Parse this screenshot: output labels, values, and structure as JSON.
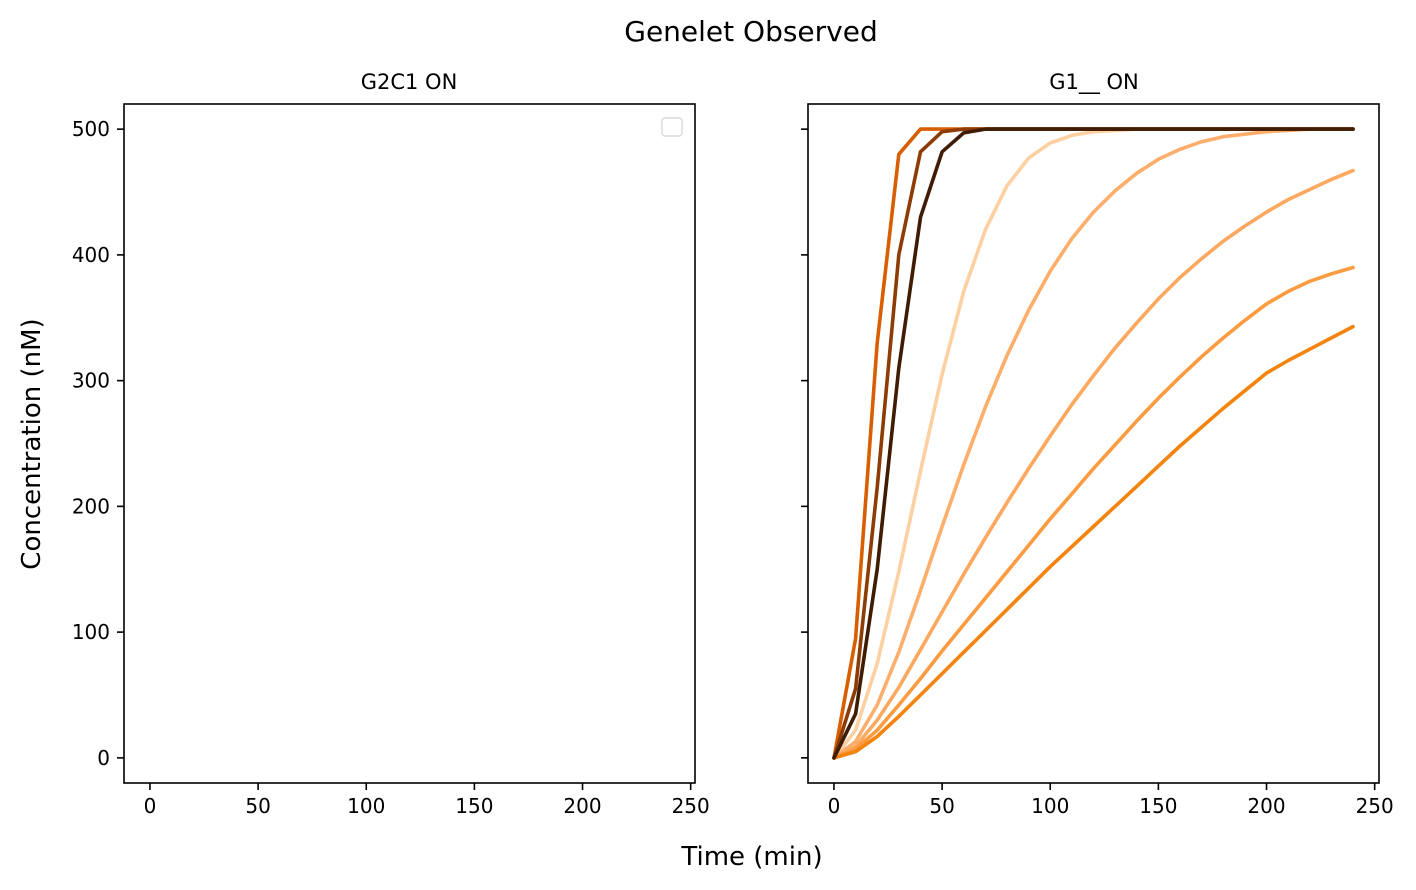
{
  "figure": {
    "title": "Genelet Observed",
    "xlabel": "Time (min)",
    "ylabel": "Concentration (nM)"
  },
  "chart_data": [
    {
      "type": "line",
      "title": "G2C1 ON",
      "xlim": [
        -12,
        252
      ],
      "ylim": [
        -20,
        520
      ],
      "xticks": [
        0,
        50,
        100,
        150,
        200,
        250
      ],
      "yticks": [
        0,
        100,
        200,
        300,
        400,
        500
      ],
      "xtick_labels": [
        "0",
        "50",
        "100",
        "150",
        "200",
        "250"
      ],
      "ytick_labels": [
        "0",
        "100",
        "200",
        "300",
        "400",
        "500"
      ],
      "show_yticklabels": true,
      "legend": {
        "location": "upper right",
        "entries": []
      },
      "grid": false,
      "series": []
    },
    {
      "type": "line",
      "title": "G1__ ON",
      "xlim": [
        -12,
        252
      ],
      "ylim": [
        -20,
        520
      ],
      "xticks": [
        0,
        50,
        100,
        150,
        200,
        250
      ],
      "yticks": [
        0,
        100,
        200,
        300,
        400,
        500
      ],
      "xtick_labels": [
        "0",
        "50",
        "100",
        "150",
        "200",
        "250"
      ],
      "ytick_labels": [
        "0",
        "100",
        "200",
        "300",
        "400",
        "500"
      ],
      "show_yticklabels": false,
      "grid": false,
      "x": [
        0,
        10,
        20,
        30,
        40,
        50,
        60,
        70,
        80,
        90,
        100,
        110,
        120,
        130,
        140,
        150,
        160,
        170,
        180,
        190,
        200,
        210,
        220,
        230,
        240
      ],
      "series": [
        {
          "color": "#fdd0a2",
          "values": [
            0,
            22,
            75,
            148,
            228,
            305,
            371,
            420,
            455,
            477,
            489,
            495,
            498,
            499,
            500,
            500,
            500,
            500,
            500,
            500,
            500,
            500,
            500,
            500,
            500
          ]
        },
        {
          "color": "#fdae6b",
          "values": [
            0,
            13,
            42,
            84,
            133,
            184,
            233,
            279,
            320,
            356,
            387,
            413,
            434,
            451,
            465,
            476,
            484,
            490,
            494,
            496,
            498,
            499,
            500,
            500,
            500
          ]
        },
        {
          "color": "#fda85f",
          "values": [
            0,
            9,
            30,
            56,
            86,
            116,
            146,
            175,
            203,
            230,
            256,
            281,
            304,
            326,
            346,
            365,
            382,
            397,
            411,
            423,
            434,
            444,
            452,
            460,
            467
          ]
        },
        {
          "color": "#fd9b40",
          "values": [
            0,
            7,
            22,
            42,
            63,
            85,
            106,
            127,
            148,
            169,
            190,
            210,
            230,
            249,
            268,
            286,
            303,
            319,
            334,
            348,
            361,
            371,
            379,
            385,
            390
          ]
        },
        {
          "color": "#f5840e",
          "values": [
            0,
            5,
            17,
            33,
            50,
            67,
            84,
            101,
            118,
            135,
            152,
            168,
            184,
            200,
            216,
            232,
            248,
            263,
            278,
            292,
            306,
            316,
            325,
            334,
            343
          ]
        },
        {
          "color": "#d95e00",
          "values": [
            0,
            95,
            330,
            480,
            500,
            500,
            500,
            500,
            500,
            500,
            500,
            500,
            500,
            500,
            500,
            500,
            500,
            500,
            500,
            500,
            500,
            500,
            500,
            500,
            500
          ]
        },
        {
          "color": "#8c3c04",
          "values": [
            0,
            55,
            215,
            400,
            482,
            498,
            500,
            500,
            500,
            500,
            500,
            500,
            500,
            500,
            500,
            500,
            500,
            500,
            500,
            500,
            500,
            500,
            500,
            500,
            500
          ]
        },
        {
          "color": "#3f1c02",
          "values": [
            0,
            35,
            150,
            310,
            430,
            482,
            497,
            500,
            500,
            500,
            500,
            500,
            500,
            500,
            500,
            500,
            500,
            500,
            500,
            500,
            500,
            500,
            500,
            500,
            500
          ]
        }
      ]
    }
  ]
}
